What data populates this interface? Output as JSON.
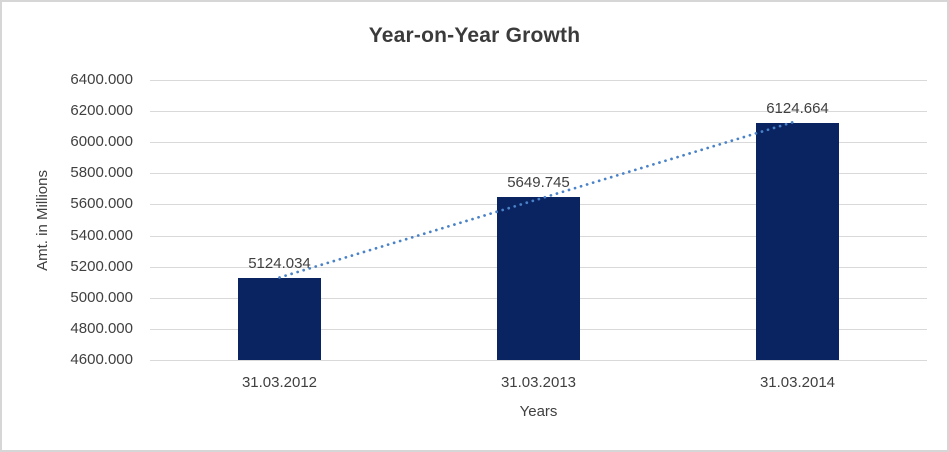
{
  "window": {
    "background": "#ffffff",
    "border_color": "#d6d6d6"
  },
  "chart_data": {
    "type": "bar",
    "title": "Year-on-Year Growth",
    "xlabel": "Years",
    "ylabel": "Amt. in Millions",
    "categories": [
      "31.03.2012",
      "31.03.2013",
      "31.03.2014"
    ],
    "values": [
      5124.034,
      5649.745,
      6124.664
    ],
    "data_labels": [
      "5124.034",
      "5649.745",
      "6124.664"
    ],
    "ylim": [
      4600,
      6400
    ],
    "ytick_step": 200,
    "ytick_labels": [
      "6400.000",
      "6200.000",
      "6000.000",
      "5800.000",
      "5600.000",
      "5400.000",
      "5200.000",
      "5000.000",
      "4800.000",
      "4600.000"
    ],
    "grid": true,
    "legend": "none",
    "bar_color": "#0a2361",
    "gridline_color": "#d9d9d9",
    "text_color": "#404040",
    "title_color": "#3b3b3b",
    "trendline": {
      "type": "linear",
      "style": "dotted",
      "color": "#4a82c8"
    }
  }
}
